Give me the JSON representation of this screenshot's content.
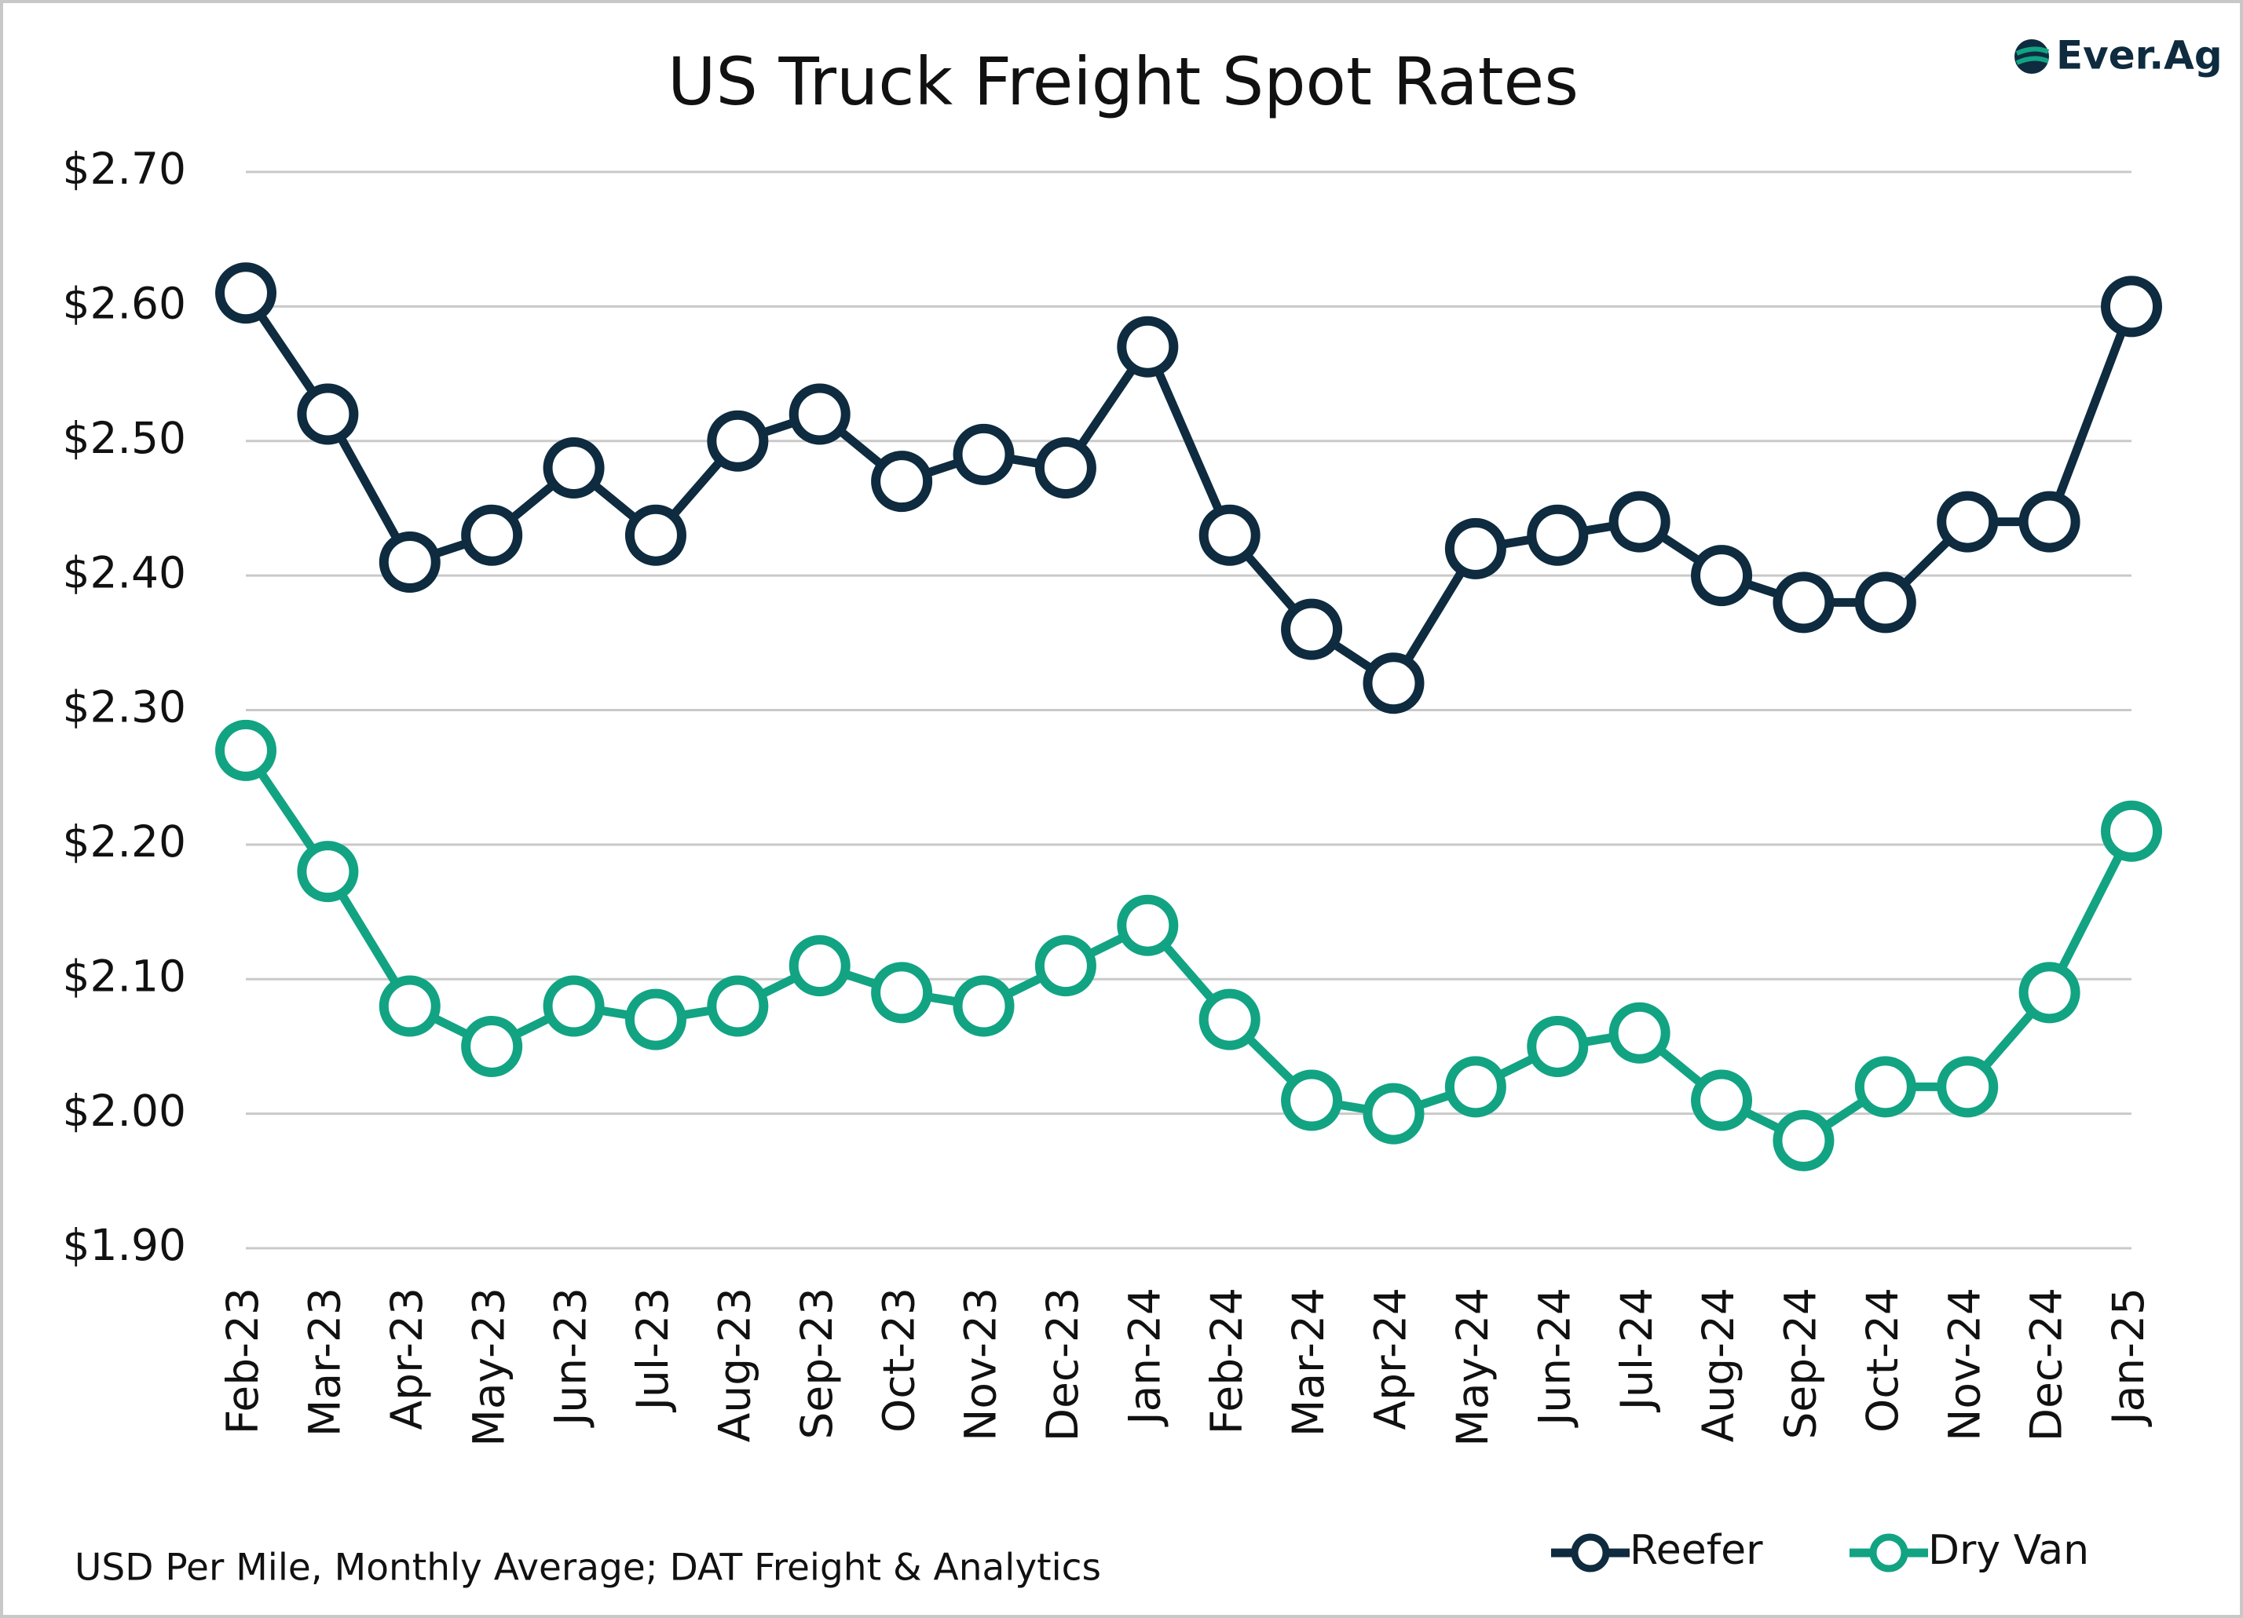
{
  "chart_data": {
    "type": "line",
    "title": "US Truck Freight Spot Rates",
    "logo": "Ever.Ag",
    "note": "USD Per Mile, Monthly Average; DAT Freight & Analytics",
    "categories": [
      "Feb-23",
      "Mar-23",
      "Apr-23",
      "May-23",
      "Jun-23",
      "Jul-23",
      "Aug-23",
      "Sep-23",
      "Oct-23",
      "Nov-23",
      "Dec-23",
      "Jan-24",
      "Feb-24",
      "Mar-24",
      "Apr-24",
      "May-24",
      "Jun-24",
      "Jul-24",
      "Aug-24",
      "Sep-24",
      "Oct-24",
      "Nov-24",
      "Dec-24",
      "Jan-25"
    ],
    "series": [
      {
        "name": "Reefer",
        "color": "#0e2b3f",
        "values": [
          2.61,
          2.52,
          2.41,
          2.43,
          2.48,
          2.43,
          2.5,
          2.52,
          2.47,
          2.49,
          2.48,
          2.57,
          2.43,
          2.36,
          2.32,
          2.42,
          2.43,
          2.44,
          2.4,
          2.38,
          2.38,
          2.44,
          2.44,
          2.6
        ]
      },
      {
        "name": "Dry Van",
        "color": "#12a383",
        "values": [
          2.27,
          2.18,
          2.08,
          2.05,
          2.08,
          2.07,
          2.08,
          2.11,
          2.09,
          2.08,
          2.11,
          2.14,
          2.07,
          2.01,
          2.0,
          2.02,
          2.05,
          2.06,
          2.01,
          1.98,
          2.02,
          2.02,
          2.09,
          2.21
        ]
      }
    ],
    "ylim": [
      1.9,
      2.7
    ],
    "yticks": [
      {
        "value": 1.9,
        "label": "$1.90"
      },
      {
        "value": 2.0,
        "label": "$2.00"
      },
      {
        "value": 2.1,
        "label": "$2.10"
      },
      {
        "value": 2.2,
        "label": "$2.20"
      },
      {
        "value": 2.3,
        "label": "$2.30"
      },
      {
        "value": 2.4,
        "label": "$2.40"
      },
      {
        "value": 2.5,
        "label": "$2.50"
      },
      {
        "value": 2.6,
        "label": "$2.60"
      },
      {
        "value": 2.7,
        "label": "$2.70"
      }
    ],
    "grid": true,
    "legend": "bottom-right"
  }
}
